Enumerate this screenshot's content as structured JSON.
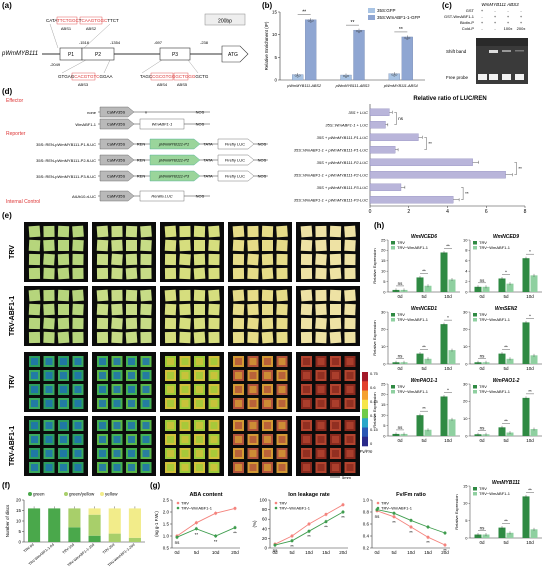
{
  "panels": {
    "a": "(a)",
    "b": "(b)",
    "c": "(c)",
    "d": "(d)",
    "e": "(e)",
    "f": "(f)",
    "g": "(g)",
    "h": "(h)"
  },
  "panel_a": {
    "scale": "200bp",
    "promoter": "pWmMYB111",
    "atg": "ATG",
    "positions": [
      "-2049",
      "-1516",
      "-1354",
      "-697",
      "-238"
    ],
    "regions": [
      "P1",
      "P2",
      "P3"
    ],
    "top_seq": [
      "CATA",
      "TTCTGGC",
      "T",
      "CAAGTGGC",
      "TTCT"
    ],
    "abs_top": [
      "ABS1",
      "ABS2"
    ],
    "bottom_left_seq": [
      "GTGAG",
      "CACGTGTC",
      "GGAA"
    ],
    "bottom_right_seq": [
      "TAGC",
      "CGCGTGGG",
      "CTGGG",
      "GCTG"
    ],
    "abs_bottom": [
      "ABS3",
      "ABS4",
      "ABS5"
    ]
  },
  "chart_b": {
    "type": "bar",
    "ylabel": "Relative Enrichment (IP)",
    "ylim": [
      0,
      15
    ],
    "ticks": [
      "0",
      "5",
      "10",
      "15"
    ],
    "categories": [
      "pWmMYB111-ABS2",
      "pWmMYB111-ABS3",
      "pWmMYB111-ABS4"
    ],
    "series": [
      {
        "name": "35S:GFP",
        "values": [
          1.2,
          1.1,
          1.4
        ],
        "color": "#a9c4e4"
      },
      {
        "name": "35S:WmABF1-1-GFP",
        "values": [
          13.3,
          11.0,
          9.5
        ],
        "color": "#8fa6d2"
      }
    ],
    "sig": [
      "**",
      "**",
      "**"
    ]
  },
  "panel_c": {
    "title": "WmMYB111 ABS3",
    "rows": [
      "GST",
      "GST-WmABF1-1",
      "Biotin-P",
      "Cold-P"
    ],
    "values": [
      [
        "+",
        "-",
        "-",
        "-"
      ],
      [
        "-",
        "+",
        "+",
        "+"
      ],
      [
        "+",
        "+",
        "+",
        "+"
      ],
      [
        "-",
        "-",
        "100x",
        "200x"
      ]
    ],
    "labels": [
      "Shift band",
      "Free probe"
    ]
  },
  "panel_d": {
    "effector_label": "Effector",
    "reporter_label": "Reporter",
    "control_label": "Internal Control",
    "constructs": [
      {
        "name": "none",
        "promoter": "CaMV35S",
        "gene": "n",
        "term": "NOS"
      },
      {
        "name": "WmABF1-1",
        "promoter": "CaMV35S",
        "gene": "WmABF1-1",
        "term": "NOS"
      },
      {
        "name": "35S::REN-pWmMYB111-P1-fLUC",
        "promoter": "CaMV35S",
        "ren": "REN",
        "prom": "pWmMYB111-P1",
        "tata": "TATA",
        "luc": "Firefly LUC",
        "term": "NOS"
      },
      {
        "name": "35S::REN-pWmMYB111-P2-fLUC",
        "promoter": "CaMV35S",
        "ren": "REN",
        "prom": "pWmMYB111-P2",
        "tata": "TATA",
        "luc": "Firefly LUC",
        "term": "NOS"
      },
      {
        "name": "35S::REN-pWmMYB111-P3-fLUC",
        "promoter": "CaMV35S",
        "ren": "REN",
        "prom": "pWmMYB111-P3",
        "tata": "TATA",
        "luc": "Firefly LUC",
        "term": "NOS"
      },
      {
        "name": "AtUb10-rLUC",
        "promoter": "CaMV35S",
        "gene": "Renilla LUC",
        "term": "NOS"
      }
    ]
  },
  "chart_d": {
    "type": "bar",
    "title": "Relative ratio of LUC/REN",
    "xlim": [
      0,
      8
    ],
    "ticks": [
      "0",
      "2",
      "4",
      "6",
      "8"
    ],
    "categories": [
      "35S + LUC",
      "35S::WmABF1-1 + LUC",
      "35S + pWmMYB111-P1-LUC",
      "35S::WmABF1-1 + pWmMYB111-P1-LUC",
      "35S + pWmMYB111-P2-LUC",
      "35S::WmABF1-1 + pWmMYB111-P2-LUC",
      "35S + pWmMYB111-P3-LUC",
      "35S::WmABF1-1 + pWmMYB111-P3-LUC"
    ],
    "values": [
      1.0,
      0.8,
      2.5,
      1.3,
      5.3,
      7.0,
      1.6,
      4.3
    ],
    "errors": [
      0.15,
      0.12,
      0.2,
      0.15,
      0.3,
      0.35,
      0.2,
      0.3
    ],
    "colors": [
      "#b9b5da",
      "#b9b5da",
      "#b9b5da",
      "#b9b5da",
      "#b9b5da",
      "#b9b5da",
      "#b9b5da",
      "#b9b5da"
    ],
    "sig": [
      {
        "from": 0,
        "to": 1,
        "label": "ns"
      },
      {
        "from": 2,
        "to": 3,
        "label": "**"
      },
      {
        "from": 4,
        "to": 5,
        "label": "**"
      },
      {
        "from": 6,
        "to": 7,
        "label": "**"
      }
    ]
  },
  "panel_e": {
    "row_labels": [
      "TRV",
      "TRV-ABF1-1",
      "TRV",
      "TRV-ABF1-1"
    ],
    "colorbar_ticks": [
      "0.75",
      "0.6",
      "0.45",
      "0.3",
      "0.15",
      "0"
    ],
    "colorbar_label": "Fv/Fm",
    "scale_label": "5mm"
  },
  "chart_f": {
    "type": "bar",
    "ylabel": "Number of discs",
    "ylim": [
      0,
      20
    ],
    "ticks": [
      "0",
      "5",
      "10",
      "15",
      "20"
    ],
    "legend": [
      "green",
      "green/yellow",
      "yellow"
    ],
    "colors": [
      "#4aa84b",
      "#a8cf6a",
      "#f2ec8a"
    ],
    "categories": [
      "TRV-0d",
      "TRV-WmABF1-1-0d",
      "TRV-10d",
      "TRV-WmABF1-1-10d",
      "TRV-20d",
      "TRV-WmABF1-1-20d"
    ],
    "stacks": [
      [
        16,
        0,
        0
      ],
      [
        16,
        0,
        0
      ],
      [
        7,
        9,
        0
      ],
      [
        3,
        10,
        3
      ],
      [
        0,
        4,
        12
      ],
      [
        0,
        2,
        14
      ]
    ]
  },
  "chart_g1": {
    "type": "line",
    "title": "ABA content",
    "ylabel": "(ng g-1 F.W.)",
    "ylim": [
      0.5,
      2.5
    ],
    "ticks": [
      "0.5",
      "1.0",
      "1.5",
      "2.0",
      "2.5"
    ],
    "x": [
      "0d",
      "5d",
      "10d",
      "20d"
    ],
    "series": [
      {
        "name": "TRV",
        "values": [
          1.0,
          1.55,
          1.95,
          2.15
        ],
        "color": "#f4837d"
      },
      {
        "name": "TRV−WmABF1-1",
        "values": [
          0.95,
          1.3,
          1.0,
          1.35
        ],
        "color": "#3f9d4e"
      }
    ],
    "sig": [
      "ns",
      "**",
      "**",
      "**"
    ]
  },
  "chart_g2": {
    "type": "line",
    "title": "Ion leakage rate",
    "ylabel": "(%)",
    "ylim": [
      0,
      100
    ],
    "ticks": [
      "0",
      "20",
      "40",
      "60",
      "80",
      "100"
    ],
    "x": [
      "0d",
      "5d",
      "10d",
      "15d",
      "20d"
    ],
    "series": [
      {
        "name": "TRV",
        "values": [
          8,
          25,
          50,
          70,
          90
        ],
        "color": "#f4837d"
      },
      {
        "name": "TRV−WmABF1-1",
        "values": [
          6,
          15,
          35,
          55,
          75
        ],
        "color": "#3f9d4e"
      }
    ],
    "sig": [
      "ns",
      "**",
      "**",
      "**",
      "**"
    ]
  },
  "chart_g3": {
    "type": "line",
    "title": "Fv/Fm ratio",
    "ylim": [
      0.2,
      1.0
    ],
    "ticks": [
      "0.2",
      "0.4",
      "0.6",
      "0.8",
      "1.0"
    ],
    "x": [
      "0d",
      "5d",
      "10d",
      "15d",
      "20d"
    ],
    "series": [
      {
        "name": "TRV",
        "values": [
          0.82,
          0.72,
          0.55,
          0.38,
          0.25
        ],
        "color": "#f4837d"
      },
      {
        "name": "TRV−WmABF1-1",
        "values": [
          0.84,
          0.78,
          0.66,
          0.55,
          0.45
        ],
        "color": "#3f9d4e"
      }
    ],
    "sig": [
      "ns",
      "**",
      "**",
      "**",
      "**"
    ]
  },
  "chart_h": {
    "type": "bar",
    "ylabel": "Relative Expression",
    "categories": [
      "0d",
      "5d",
      "10d"
    ],
    "legend": [
      "TRV",
      "TRV−WmABF1-1"
    ],
    "colors": [
      "#2f8a43",
      "#8fd0a0"
    ],
    "genes": [
      {
        "name": "WmNCED6",
        "ylim": [
          0,
          25
        ],
        "ticks": [
          "0",
          "5",
          "10",
          "15",
          "20",
          "25"
        ],
        "trv": [
          1,
          7,
          19
        ],
        "abf": [
          1,
          3,
          6
        ],
        "sig": [
          "ns",
          "**",
          "**"
        ]
      },
      {
        "name": "WmNCED9",
        "ylim": [
          0,
          10
        ],
        "ticks": [
          "0",
          "2",
          "4",
          "6",
          "8",
          "10"
        ],
        "trv": [
          1,
          2.6,
          6.5
        ],
        "abf": [
          1,
          1.6,
          3.2
        ],
        "sig": [
          "ns",
          "*",
          "*"
        ]
      },
      {
        "name": "WmNCED1",
        "ylim": [
          0,
          30
        ],
        "ticks": [
          "0",
          "10",
          "20",
          "30"
        ],
        "trv": [
          1,
          6,
          23
        ],
        "abf": [
          1,
          3,
          8
        ],
        "sig": [
          "ns",
          "**",
          "*"
        ]
      },
      {
        "name": "WmSEN2",
        "ylim": [
          0,
          30
        ],
        "ticks": [
          "0",
          "10",
          "20",
          "30"
        ],
        "trv": [
          1,
          6,
          24
        ],
        "abf": [
          1,
          3,
          5
        ],
        "sig": [
          "ns",
          "**",
          "*"
        ]
      },
      {
        "name": "WmPAO1-1",
        "ylim": [
          0,
          25
        ],
        "ticks": [
          "0",
          "5",
          "10",
          "15",
          "20",
          "25"
        ],
        "trv": [
          1,
          10,
          19
        ],
        "abf": [
          1,
          3,
          8
        ],
        "sig": [
          "ns",
          "**",
          "*"
        ]
      },
      {
        "name": "WmPAO1-2",
        "ylim": [
          0,
          30
        ],
        "ticks": [
          "0",
          "10",
          "20",
          "30"
        ],
        "trv": [
          1,
          5,
          22
        ],
        "abf": [
          1,
          2,
          4
        ],
        "sig": [
          "ns",
          "**",
          "**"
        ]
      },
      {
        "name": "WmMYB111",
        "ylim": [
          0,
          15
        ],
        "ticks": [
          "0",
          "5",
          "10",
          "15"
        ],
        "trv": [
          1,
          3,
          12
        ],
        "abf": [
          1,
          1.5,
          2.5
        ],
        "sig": [
          "ns",
          "**",
          "**"
        ]
      }
    ]
  }
}
